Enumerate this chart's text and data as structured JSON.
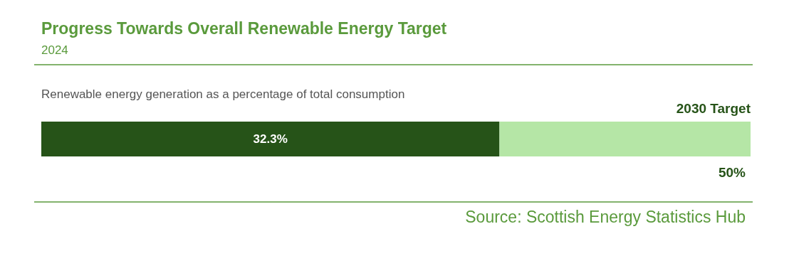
{
  "chart_data": {
    "type": "bar",
    "orientation": "horizontal",
    "stacked": true,
    "title": "Progress Towards Overall Renewable Energy Target",
    "subtitle": "2024",
    "categories": [
      null
    ],
    "series": [
      {
        "color": "#265318",
        "values": [
          32.3
        ],
        "value_labels": [
          "32.3%"
        ]
      },
      {
        "color": "#b5e6a6",
        "values": [
          17.7
        ]
      }
    ],
    "totals": [
      "50%"
    ],
    "annotations": [
      "Renewable energy generation as a percentage of total consumption",
      "2030 Target",
      "Source: Scottish Energy Statistics Hub"
    ]
  }
}
